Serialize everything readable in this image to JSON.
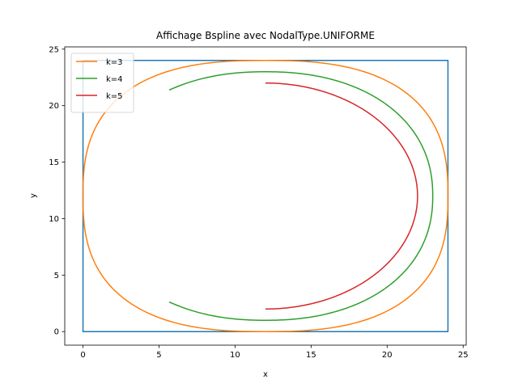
{
  "chart_data": {
    "type": "line",
    "title": "Affichage Bspline avec NodalType.UNIFORME",
    "xlabel": "x",
    "ylabel": "y",
    "xlim": [
      -1.2,
      25.2
    ],
    "ylim": [
      -1.2,
      25.2
    ],
    "xticks": [
      0,
      5,
      10,
      15,
      20,
      25
    ],
    "yticks": [
      0,
      5,
      10,
      15,
      20,
      25
    ],
    "grid": false,
    "legend_position": "top-left",
    "series": [
      {
        "name": "",
        "role": "control polygon",
        "color": "#1f77b4",
        "points": [
          [
            0,
            12
          ],
          [
            0,
            24
          ],
          [
            24,
            24
          ],
          [
            24,
            0
          ],
          [
            0,
            0
          ],
          [
            0,
            12
          ]
        ]
      },
      {
        "name": "k=3",
        "color": "#ff7f0e",
        "curve": {
          "degree": 3,
          "center": [
            12,
            12
          ],
          "rx": 12,
          "ry": 12,
          "exponent": 2.6,
          "t_start": -90,
          "t_end": 270
        }
      },
      {
        "name": "k=4",
        "color": "#2ca02c",
        "curve": {
          "degree": 4,
          "center": [
            12,
            12
          ],
          "rx": 11,
          "ry": 11,
          "exponent": 2.2,
          "t_start": -123,
          "t_end": 123
        }
      },
      {
        "name": "k=5",
        "color": "#d62728",
        "curve": {
          "degree": 5,
          "center": [
            12,
            12
          ],
          "rx": 10,
          "ry": 10,
          "exponent": 2.0,
          "t_start": -90,
          "t_end": 90
        }
      }
    ]
  }
}
